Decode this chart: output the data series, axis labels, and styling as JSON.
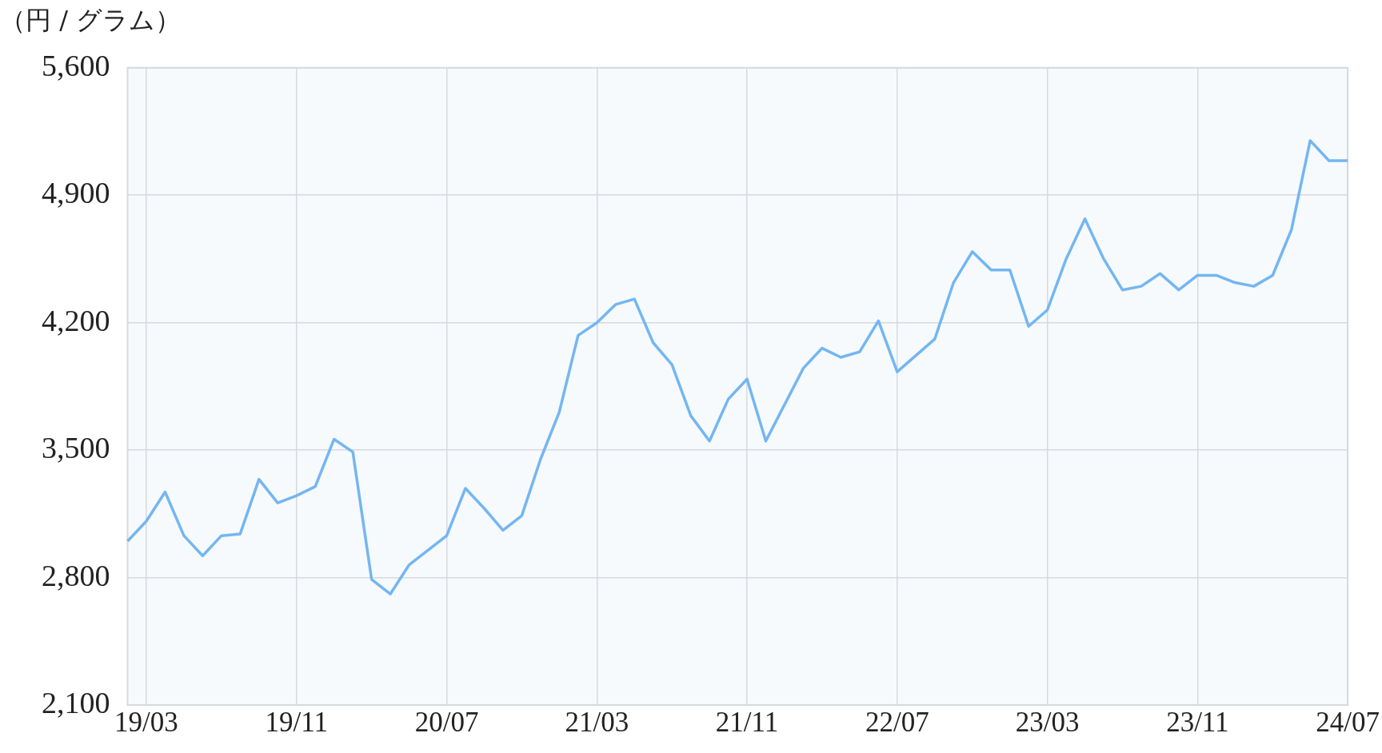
{
  "chart_data": {
    "type": "line",
    "ylabel": "（円 / グラム）",
    "categories": [
      null,
      "19/03",
      null,
      null,
      null,
      null,
      null,
      null,
      null,
      "19/11",
      null,
      null,
      null,
      null,
      null,
      null,
      null,
      "20/07",
      null,
      null,
      null,
      null,
      null,
      null,
      null,
      "21/03",
      null,
      null,
      null,
      null,
      null,
      null,
      null,
      "21/11",
      null,
      null,
      null,
      null,
      null,
      null,
      null,
      "22/07",
      null,
      null,
      null,
      null,
      null,
      null,
      null,
      "23/03",
      null,
      null,
      null,
      null,
      null,
      null,
      null,
      "23/11",
      null,
      null,
      null,
      null,
      null,
      null,
      null,
      "24/07"
    ],
    "series": [
      {
        "color": "#74b6f2",
        "values": [
          3000,
          3110,
          3270,
          3030,
          2920,
          3030,
          3040,
          3340,
          3210,
          3250,
          3300,
          3560,
          3490,
          2790,
          2710,
          2870,
          2950,
          3030,
          3290,
          3180,
          3060,
          3140,
          3450,
          3710,
          4130,
          4200,
          4300,
          4330,
          4090,
          3970,
          3690,
          3550,
          3780,
          3890,
          3550,
          3750,
          3950,
          4060,
          4010,
          4040,
          4210,
          3930,
          4020,
          4110,
          4420,
          4590,
          4490,
          4490,
          4180,
          4270,
          4550,
          4770,
          4550,
          4380,
          4400,
          4470,
          4380,
          4460,
          4460,
          4420,
          4400,
          4460,
          4710,
          5200,
          5090,
          5090
        ]
      }
    ],
    "ylim": [
      2100,
      5600
    ],
    "yticks": [
      {
        "value": 2100,
        "label": "2,100"
      },
      {
        "value": 2800,
        "label": "2,800"
      },
      {
        "value": 3500,
        "label": "3,500"
      },
      {
        "value": 4200,
        "label": "4,200"
      },
      {
        "value": 4900,
        "label": "4,900"
      },
      {
        "value": 5600,
        "label": "5,600"
      }
    ],
    "grid": true,
    "legend": false,
    "marker": "none",
    "line_style": "solid"
  }
}
